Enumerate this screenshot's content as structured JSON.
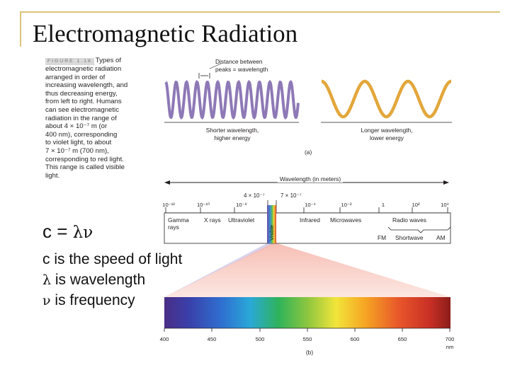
{
  "title": "Electromagnetic Radiation",
  "caption": {
    "label": "FIGURE 1.18",
    "lines": [
      "Types of",
      "electromagnetic radiation",
      "arranged in order of",
      "increasing wavelength, and",
      "thus decreasing energy,",
      "from left to right. Humans",
      "can see electromagnetic",
      "radiation in the range of",
      "about 4 × 10⁻⁷ m (or",
      "400 nm), corresponding",
      "to violet light, to about",
      "7 × 10⁻⁷ m (700 nm),",
      "corresponding to red light.",
      "This range is called visible",
      "light."
    ]
  },
  "figure_a": {
    "distance_label_1": "Distance between",
    "distance_label_2": "peaks = wavelength",
    "short_label_1": "Shorter wavelength,",
    "short_label_2": "higher energy",
    "long_label_1": "Longer wavelength,",
    "long_label_2": "lower energy",
    "panel_label": "(a)",
    "axis_label": "Wavelength (in meters)",
    "visible_marks": [
      "4 × 10⁻⁷",
      "7 × 10⁻⁷"
    ],
    "ticks": [
      "10⁻¹²",
      "10⁻¹⁰",
      "10⁻⁸",
      "10⁻⁴",
      "10⁻²",
      "1",
      "10²",
      "10⁴"
    ],
    "bands": [
      "Gamma rays",
      "X rays",
      "Ultraviolet",
      "Visible",
      "Infrared",
      "Microwaves",
      "Radio waves"
    ],
    "radio_sub": [
      "FM",
      "Shortwave",
      "AM"
    ],
    "colors": {
      "short_wave": "#8e79b6",
      "long_wave": "#e2a73b",
      "violet": "#d7d4f0",
      "red": "#f9d3cc"
    }
  },
  "figure_b": {
    "ticks": [
      "400",
      "450",
      "500",
      "550",
      "600",
      "650",
      "700"
    ],
    "unit": "nm",
    "panel_label": "(b)"
  },
  "equation": {
    "left": "c = ",
    "greek": "λν"
  },
  "definitions": [
    {
      "sym": "c",
      "text": " is the speed of light"
    },
    {
      "sym": "λ",
      "text": " is wavelength"
    },
    {
      "sym": "ν",
      "text": " is frequency"
    }
  ]
}
